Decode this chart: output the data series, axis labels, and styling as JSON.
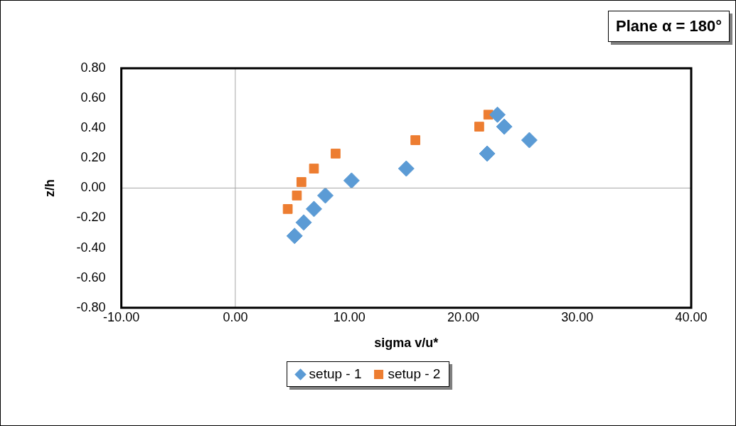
{
  "chart_data": {
    "type": "scatter",
    "title": "Plane α = 180°",
    "xlabel": "sigma v/u*",
    "ylabel": "z/h",
    "xlim": [
      -10,
      40
    ],
    "xticks": [
      {
        "value": -10,
        "label": "-10.00"
      },
      {
        "value": 0,
        "label": "0.00"
      },
      {
        "value": 10,
        "label": "10.00"
      },
      {
        "value": 20,
        "label": "20.00"
      },
      {
        "value": 30,
        "label": "30.00"
      },
      {
        "value": 40,
        "label": "40.00"
      }
    ],
    "ylim": [
      -0.8,
      0.8
    ],
    "yticks": [
      {
        "value": -0.8,
        "label": "-0.80"
      },
      {
        "value": -0.6,
        "label": "-0.60"
      },
      {
        "value": -0.4,
        "label": "-0.40"
      },
      {
        "value": -0.2,
        "label": "-0.20"
      },
      {
        "value": 0,
        "label": "0.00"
      },
      {
        "value": 0.2,
        "label": "0.20"
      },
      {
        "value": 0.4,
        "label": "0.40"
      },
      {
        "value": 0.6,
        "label": "0.60"
      },
      {
        "value": 0.8,
        "label": "0.80"
      }
    ],
    "legend": "bottom",
    "series": [
      {
        "name": "setup - 1",
        "color": "#5b9bd5",
        "marker": "diamond",
        "x": [
          5.2,
          6.0,
          6.9,
          7.9,
          10.2,
          15.0,
          22.1,
          23.0,
          23.6,
          25.8
        ],
        "values": [
          -0.32,
          -0.23,
          -0.14,
          -0.05,
          0.05,
          0.13,
          0.23,
          0.49,
          0.41,
          0.32
        ]
      },
      {
        "name": "setup - 2",
        "color": "#ed7d31",
        "marker": "square",
        "x": [
          4.6,
          5.4,
          5.8,
          6.9,
          8.8,
          15.8,
          21.4,
          22.2
        ],
        "values": [
          -0.14,
          -0.05,
          0.04,
          0.13,
          0.23,
          0.32,
          0.41,
          0.49
        ]
      }
    ]
  }
}
